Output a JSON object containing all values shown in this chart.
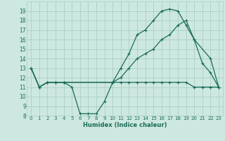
{
  "xlabel": "Humidex (Indice chaleur)",
  "background_color": "#cde8e0",
  "grid_color": "#aacfc5",
  "line_color": "#1a6b5a",
  "xlim": [
    -0.5,
    23.5
  ],
  "ylim": [
    8,
    20
  ],
  "yticks": [
    8,
    9,
    10,
    11,
    12,
    13,
    14,
    15,
    16,
    17,
    18,
    19
  ],
  "xticks": [
    0,
    1,
    2,
    3,
    4,
    5,
    6,
    7,
    8,
    9,
    10,
    11,
    12,
    13,
    14,
    15,
    16,
    17,
    18,
    19,
    20,
    21,
    22,
    23
  ],
  "curve1_x": [
    0,
    1,
    2,
    3,
    4,
    5,
    6,
    7,
    8,
    9,
    10,
    11,
    12,
    13,
    14,
    15,
    16,
    17,
    18,
    19,
    20,
    21,
    22,
    23
  ],
  "curve1_y": [
    13,
    11,
    11.5,
    11.5,
    11.5,
    11,
    8.2,
    8.2,
    8.2,
    9.5,
    11.5,
    11.5,
    11.5,
    11.5,
    11.5,
    11.5,
    11.5,
    11.5,
    11.5,
    11.5,
    11,
    11,
    11,
    11
  ],
  "curve2_x": [
    0,
    1,
    2,
    3,
    4,
    10,
    11,
    12,
    13,
    14,
    15,
    16,
    17,
    18,
    19,
    20,
    21,
    22,
    23
  ],
  "curve2_y": [
    13,
    11,
    11.5,
    11.5,
    11.5,
    11.5,
    13,
    14.5,
    16.5,
    17,
    18,
    19,
    19.2,
    19,
    17.5,
    16,
    13.5,
    12.5,
    11
  ],
  "curve3_x": [
    0,
    1,
    2,
    3,
    4,
    10,
    11,
    12,
    13,
    14,
    15,
    16,
    17,
    18,
    19,
    20,
    22,
    23
  ],
  "curve3_y": [
    13,
    11,
    11.5,
    11.5,
    11.5,
    11.5,
    12,
    13,
    14,
    14.5,
    15,
    16,
    16.5,
    17.5,
    18,
    16,
    14,
    11
  ]
}
